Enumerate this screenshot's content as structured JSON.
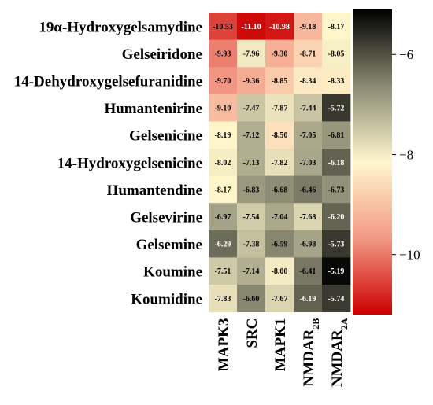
{
  "chart_data": {
    "type": "heatmap",
    "title": "",
    "xlabel": "",
    "ylabel": "",
    "rows": [
      "19α-Hydroxygelsamydine",
      "Gelseiridone",
      "14-Dehydroxygelsefuranidine",
      "Humantenirine",
      "Gelsenicine",
      "14-Hydroxygelsenicine",
      "Humantendine",
      "Gelsevirine",
      "Gelsemine",
      "Koumine",
      "Koumidine"
    ],
    "columns": [
      {
        "base": "MAPK3",
        "sub": ""
      },
      {
        "base": "SRC",
        "sub": ""
      },
      {
        "base": "MAPK1",
        "sub": ""
      },
      {
        "base": "NMDAR",
        "sub": "2B"
      },
      {
        "base": "NMDAR",
        "sub": "2A"
      }
    ],
    "values": [
      [
        -10.53,
        -11.1,
        -10.98,
        -9.18,
        -8.17
      ],
      [
        -9.93,
        -7.96,
        -9.3,
        -8.71,
        -8.05
      ],
      [
        -9.7,
        -9.36,
        -8.85,
        -8.34,
        -8.33
      ],
      [
        -9.1,
        -7.47,
        -7.87,
        -7.44,
        -5.72
      ],
      [
        -8.19,
        -7.12,
        -8.5,
        -7.05,
        -6.81
      ],
      [
        -8.02,
        -7.13,
        -7.82,
        -7.03,
        -6.18
      ],
      [
        -8.17,
        -6.83,
        -6.68,
        -6.46,
        -6.73
      ],
      [
        -6.97,
        -7.54,
        -7.04,
        -7.68,
        -6.2
      ],
      [
        -6.29,
        -7.38,
        -6.59,
        -6.98,
        -5.73
      ],
      [
        -7.51,
        -7.14,
        -8.0,
        -6.41,
        -5.19
      ],
      [
        -7.83,
        -6.6,
        -7.67,
        -6.19,
        -5.74
      ]
    ],
    "value_labels": [
      [
        "-10.53",
        "-11.10",
        "-10.98",
        "-9.18",
        "-8.17"
      ],
      [
        "-9.93",
        "-7.96",
        "-9.30",
        "-8.71",
        "-8.05"
      ],
      [
        "-9.70",
        "-9.36",
        "-8.85",
        "-8.34",
        "-8.33"
      ],
      [
        "-9.10",
        "-7.47",
        "-7.87",
        "-7.44",
        "-5.72"
      ],
      [
        "-8.19",
        "-7.12",
        "-8.50",
        "-7.05",
        "-6.81"
      ],
      [
        "-8.02",
        "-7.13",
        "-7.82",
        "-7.03",
        "-6.18"
      ],
      [
        "-8.17",
        "-6.83",
        "-6.68",
        "-6.46",
        "-6.73"
      ],
      [
        "-6.97",
        "-7.54",
        "-7.04",
        "-7.68",
        "-6.20"
      ],
      [
        "-6.29",
        "-7.38",
        "-6.59",
        "-6.98",
        "-5.73"
      ],
      [
        "-7.51",
        "-7.14",
        "-8.00",
        "-6.41",
        "-5.19"
      ],
      [
        "-7.83",
        "-6.60",
        "-7.67",
        "-6.19",
        "-5.74"
      ]
    ],
    "colorbar": {
      "range": [
        -11.2,
        -5.1
      ],
      "ticks": [
        -6,
        -8,
        -10
      ],
      "tick_labels": [
        "−6",
        "−8",
        "−10"
      ],
      "colors": [
        "#cc0000",
        "#f29985",
        "#fff6cc",
        "#8a8a73",
        "#000000"
      ]
    },
    "grid": false,
    "legend": "colorbar-right"
  }
}
